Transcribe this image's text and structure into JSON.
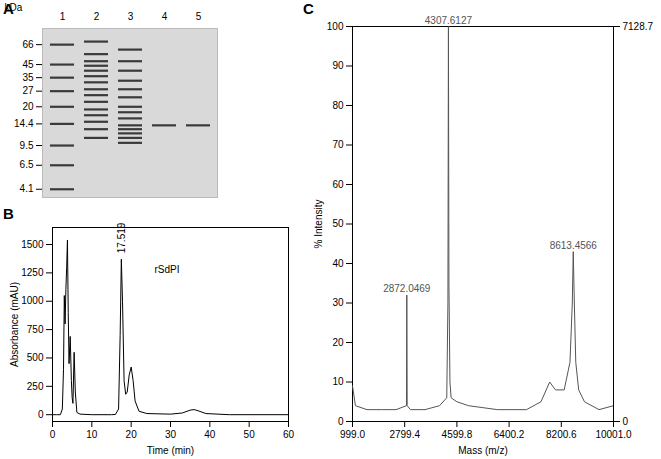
{
  "chart_data": [
    {
      "type": "gel",
      "title": "A",
      "y_label": "kDa",
      "categories": [
        "1",
        "2",
        "3",
        "4",
        "5"
      ],
      "bands": [
        [
          66,
          45,
          35,
          27,
          20,
          14.4,
          9.5,
          6.5,
          4.1
        ],
        [
          70,
          55,
          48,
          44,
          40,
          36,
          32,
          28,
          25,
          22,
          19,
          17,
          15,
          13,
          11
        ],
        [
          60,
          48,
          40,
          33,
          28,
          24,
          20,
          18,
          16,
          14,
          13,
          12,
          11,
          10
        ],
        [
          14
        ],
        [
          14
        ]
      ],
      "ylim": [
        3.5,
        90
      ],
      "yticks": [
        66,
        45,
        35,
        27,
        20,
        14.4,
        9.5,
        6.5,
        4.1
      ],
      "log": "y"
    },
    {
      "type": "line",
      "title": "B",
      "x_label": "Time (min)",
      "y_label": "Absorbance (mAU)",
      "x": [
        0,
        1,
        2,
        2.5,
        2.8,
        3.0,
        3.2,
        3.4,
        3.6,
        3.8,
        4.0,
        4.2,
        4.5,
        4.8,
        5.0,
        5.2,
        5.5,
        5.8,
        6.2,
        7,
        10,
        15,
        16,
        16.8,
        17.2,
        17.5,
        17.8,
        18.2,
        18.6,
        19.0,
        19.5,
        20.0,
        20.5,
        21,
        22,
        24,
        30,
        33,
        35,
        36,
        37,
        39,
        45,
        60
      ],
      "values": [
        0,
        0,
        0,
        50,
        400,
        1050,
        800,
        1100,
        1300,
        1540,
        900,
        450,
        690,
        300,
        150,
        100,
        550,
        200,
        20,
        5,
        0,
        0,
        2,
        50,
        700,
        1370,
        1000,
        300,
        180,
        200,
        350,
        420,
        300,
        120,
        30,
        10,
        5,
        15,
        40,
        45,
        35,
        10,
        0,
        0
      ],
      "color": "#000000",
      "xlim": [
        0,
        60
      ],
      "xticks": [
        0,
        10,
        20,
        30,
        40,
        50,
        60
      ],
      "ylim": [
        -60,
        1650
      ],
      "yticks": [
        0,
        250,
        500,
        750,
        1000,
        1250,
        1500
      ],
      "peak_labels": [
        {
          "x": 17.519,
          "y": 1370,
          "label": "17.519"
        }
      ],
      "annotations": [
        {
          "x": 18.3,
          "y": 1280,
          "label": "rSdPI"
        }
      ]
    },
    {
      "type": "line",
      "title": "C",
      "x_label": "Mass (m/z)",
      "y_label": "% Intensity",
      "x": [
        999,
        1100,
        1500,
        2000,
        2500,
        2860,
        2872,
        2885,
        3000,
        3500,
        4000,
        4250,
        4290,
        4307.6,
        4325,
        4360,
        4400,
        4600,
        5000,
        6000,
        7000,
        7500,
        7800,
        8000,
        8300,
        8500,
        8580,
        8613,
        8650,
        8700,
        8800,
        9000,
        9500,
        10001
      ],
      "values": [
        9,
        4,
        3,
        3,
        3,
        4,
        32,
        4,
        3,
        3,
        4,
        6,
        30,
        100,
        35,
        10,
        6,
        5,
        4,
        3,
        3,
        5,
        10,
        8,
        8,
        15,
        30,
        43,
        30,
        15,
        8,
        5,
        3,
        4
      ],
      "color": "#555555",
      "xlim": [
        999,
        10001
      ],
      "xticks": [
        {
          "value": 999,
          "label": "999.0"
        },
        {
          "value": 2799.4,
          "label": "2799.4"
        },
        {
          "value": 4599.8,
          "label": "4599.8"
        },
        {
          "value": 6400.2,
          "label": "6400.2"
        },
        {
          "value": 8200.6,
          "label": "8200.6"
        },
        {
          "value": 10001,
          "label": "10001.0"
        }
      ],
      "ylim": [
        0,
        100
      ],
      "yticks": [
        0,
        10,
        20,
        30,
        40,
        50,
        60,
        70,
        80,
        90,
        100
      ],
      "y2lim": [
        0,
        7128.7
      ],
      "y2ticks": [
        0,
        7128.7
      ],
      "peak_labels": [
        {
          "x": 2872.0469,
          "y": 32,
          "label": "2872.0469"
        },
        {
          "x": 4307.6127,
          "y": 100,
          "label": "4307.6127"
        },
        {
          "x": 8613.4566,
          "y": 43,
          "label": "8613.4566"
        }
      ]
    }
  ]
}
